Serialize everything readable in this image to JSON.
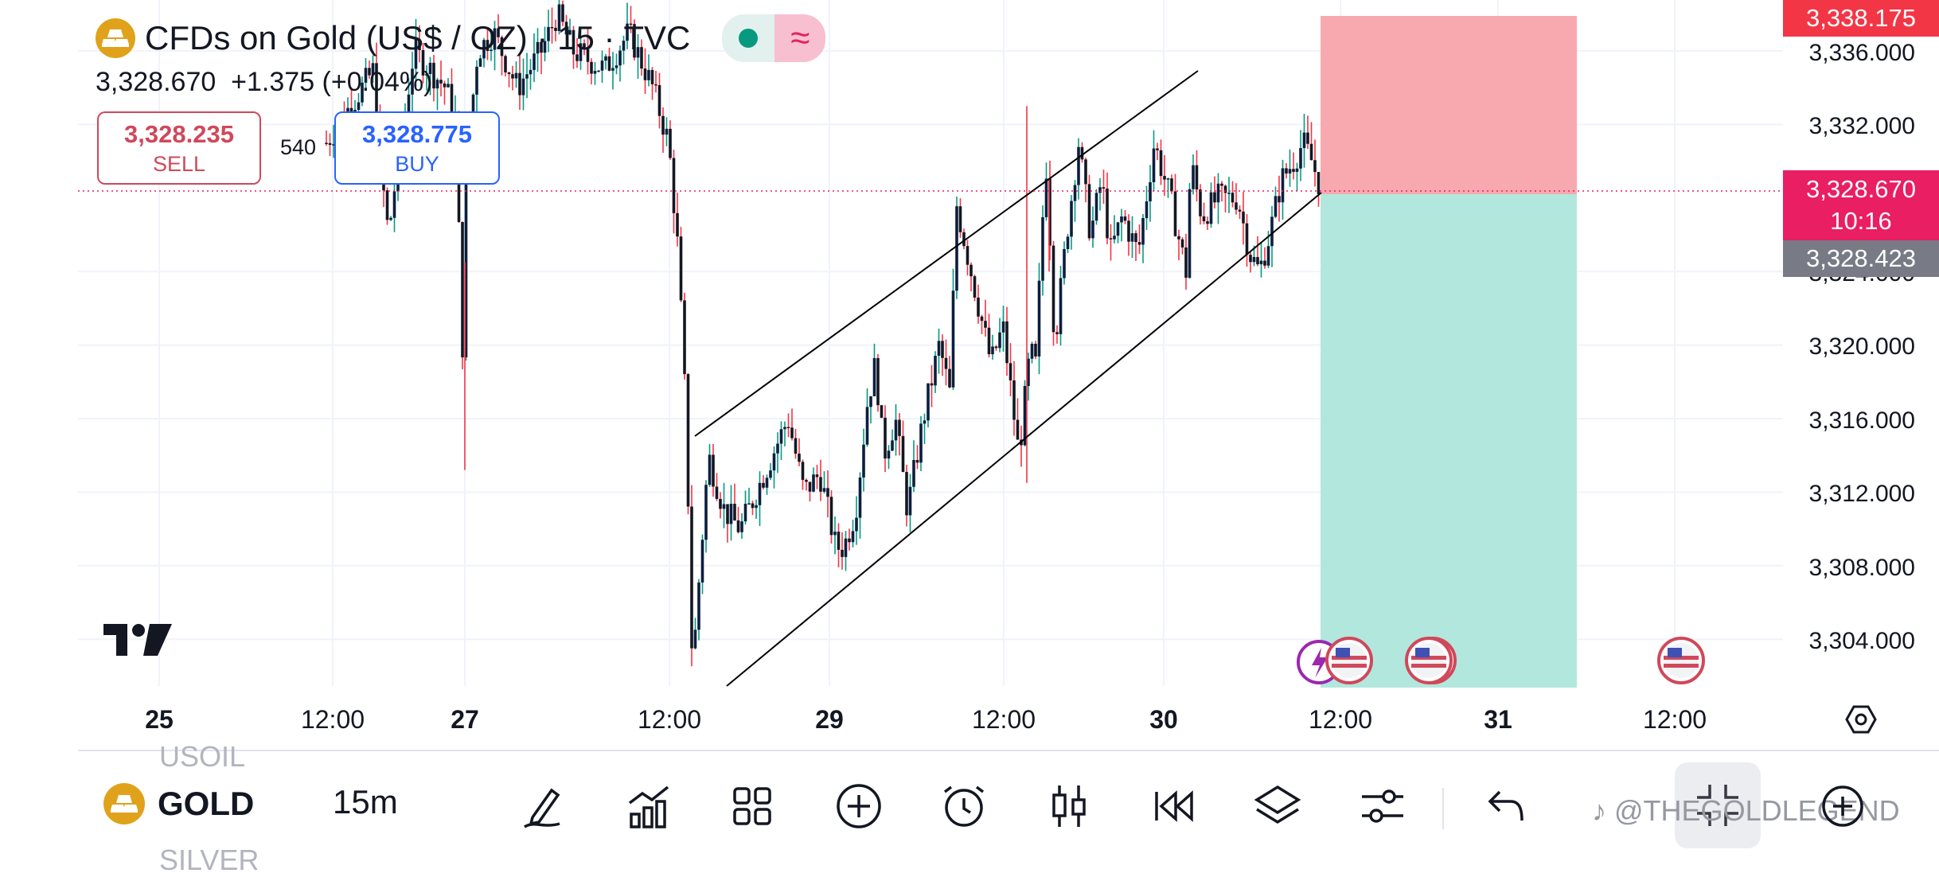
{
  "header": {
    "title": "CFDs on Gold (US$ / OZ) · 15 · TVC",
    "wave_symbol": "≈",
    "last_price": "3,328.670",
    "change": "+1.375 (+0.04%)",
    "sell_price": "3,328.235",
    "sell_label": "SELL",
    "spread": "540",
    "buy_price": "3,328.775",
    "buy_label": "BUY"
  },
  "price_axis": {
    "labels": [
      "3,336.000",
      "3,332.000",
      "3,324.000",
      "3,320.000",
      "3,316.000",
      "3,312.000",
      "3,308.000",
      "3,304.000"
    ],
    "stop_label": "3,338.175",
    "current_price": "3,328.670",
    "countdown": "10:16",
    "target_label": "3,328.423"
  },
  "time_axis": {
    "labels": [
      {
        "text": "25",
        "bold": true
      },
      {
        "text": "12:00",
        "bold": false
      },
      {
        "text": "27",
        "bold": true
      },
      {
        "text": "12:00",
        "bold": false
      },
      {
        "text": "29",
        "bold": true
      },
      {
        "text": "12:00",
        "bold": false
      },
      {
        "text": "30",
        "bold": true
      },
      {
        "text": "12:00",
        "bold": false
      },
      {
        "text": "31",
        "bold": true
      },
      {
        "text": "12:00",
        "bold": false
      }
    ]
  },
  "chart_data": {
    "type": "candlestick",
    "symbol": "CFDs on Gold (US$ / OZ)",
    "interval": "15",
    "ylim": [
      3300.5,
      3340
    ],
    "y_ticks": [
      3304,
      3308,
      3312,
      3316,
      3320,
      3324,
      3332,
      3336
    ],
    "current_price": 3328.67,
    "position": {
      "entry": 3328.67,
      "stop": 3338.175,
      "target_lower": 3300.5
    },
    "channel": {
      "upper": [
        [
          2.05,
          3315.3
        ],
        [
          3.54,
          3335.7
        ]
      ],
      "lower": [
        [
          2.16,
          3300.3
        ],
        [
          3.82,
          3327.7
        ]
      ]
    },
    "colors": {
      "up": "#131722",
      "down": "#131722",
      "sell": "#d0485a",
      "buy": "#2962ff",
      "price": "#e91e63",
      "stop_zone": "#f7a9af",
      "target_zone": "#b2e7dd"
    }
  },
  "bottom_bar": {
    "ghost_above": "USOIL",
    "symbol": "GOLD",
    "ghost_below": "SILVER",
    "interval": "15m",
    "watermark": "@THEGOLDLEGEND"
  }
}
